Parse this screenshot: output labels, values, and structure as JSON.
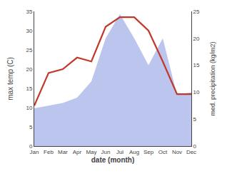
{
  "chart_data": {
    "type": "line",
    "categories": [
      "Jan",
      "Feb",
      "Mar",
      "Apr",
      "May",
      "Jun",
      "Jul",
      "Aug",
      "Sep",
      "Oct",
      "Nov",
      "Dec"
    ],
    "xlabel": "date (month)",
    "ylabel": "max temp (C)",
    "y2label": "med. precipitation (kg/m2)",
    "series": [
      {
        "type": "area",
        "axis": "y2",
        "color": "#bbc5ee",
        "values": [
          7.0,
          7.5,
          8.0,
          9.0,
          12.0,
          20.0,
          24.5,
          20.0,
          15.0,
          20.0,
          9.5,
          10.0
        ]
      },
      {
        "type": "line",
        "color": "#c0392b",
        "values": [
          10.5,
          19.0,
          20.0,
          23.0,
          22.0,
          31.0,
          33.5,
          33.5,
          30.0,
          22.0,
          13.5,
          13.5
        ]
      }
    ],
    "ylim": [
      0,
      35
    ],
    "yticks": [
      0,
      5,
      10,
      15,
      20,
      25,
      30,
      35
    ],
    "y2lim": [
      0,
      25
    ],
    "y2ticks": [
      0,
      5,
      10,
      15,
      20,
      25
    ],
    "grid": false
  }
}
